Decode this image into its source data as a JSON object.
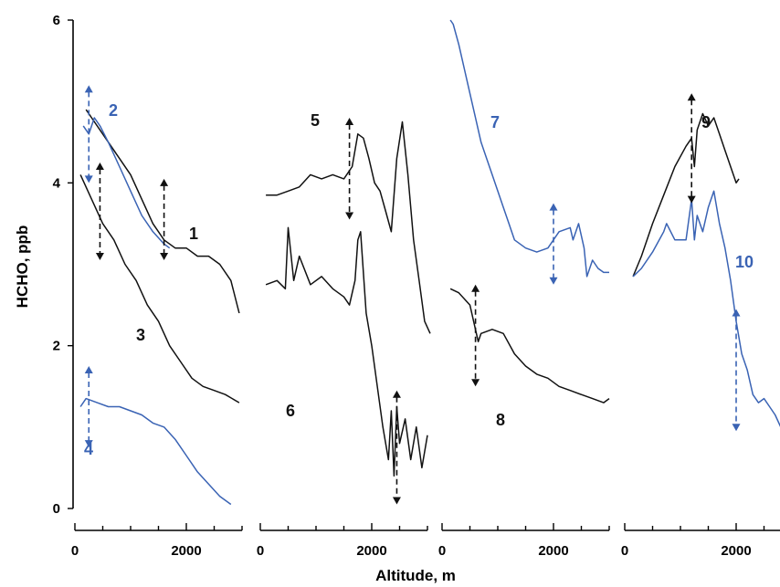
{
  "colors": {
    "black": "#111111",
    "blue": "#3a63b4"
  },
  "chart_data": {
    "type": "line",
    "xlabel": "Altitude, m",
    "ylabel": "HCHO, ppb",
    "ylim": [
      0,
      6
    ],
    "yticks": [
      0,
      2,
      4,
      6
    ],
    "xlim": [
      0,
      3000
    ],
    "xticks": [
      0,
      2000
    ],
    "panels": [
      {
        "series": [
          {
            "label": "1",
            "color": "black",
            "x": [
              200,
              300,
              500,
              800,
              1000,
              1200,
              1400,
              1600,
              1800,
              2000,
              2200,
              2400,
              2600,
              2800,
              2950
            ],
            "y": [
              4.9,
              4.8,
              4.6,
              4.3,
              4.1,
              3.8,
              3.5,
              3.3,
              3.2,
              3.2,
              3.1,
              3.1,
              3.0,
              2.8,
              2.4
            ]
          },
          {
            "label": "2",
            "color": "blue",
            "x": [
              150,
              250,
              350,
              450,
              600,
              800,
              1000,
              1200,
              1400,
              1600,
              1700
            ],
            "y": [
              4.7,
              4.6,
              4.8,
              4.7,
              4.5,
              4.2,
              3.9,
              3.6,
              3.4,
              3.25,
              3.2
            ]
          },
          {
            "label": "3",
            "color": "black",
            "x": [
              100,
              300,
              500,
              700,
              900,
              1100,
              1300,
              1500,
              1700,
              1900,
              2100,
              2300,
              2500,
              2700,
              2950
            ],
            "y": [
              4.1,
              3.8,
              3.5,
              3.3,
              3.0,
              2.8,
              2.5,
              2.3,
              2.0,
              1.8,
              1.6,
              1.5,
              1.45,
              1.4,
              1.3
            ]
          },
          {
            "label": "4",
            "color": "blue",
            "x": [
              100,
              200,
              400,
              600,
              800,
              1000,
              1200,
              1400,
              1600,
              1800,
              2000,
              2200,
              2400,
              2600,
              2800
            ],
            "y": [
              1.25,
              1.35,
              1.3,
              1.25,
              1.25,
              1.2,
              1.15,
              1.05,
              1.0,
              0.85,
              0.65,
              0.45,
              0.3,
              0.15,
              0.05
            ]
          }
        ],
        "arrows": [
          {
            "x": 250,
            "y1": 4.0,
            "y2": 5.2,
            "color": "blue",
            "heads": "both"
          },
          {
            "x": 450,
            "y1": 3.05,
            "y2": 4.25,
            "color": "black",
            "heads": "both"
          },
          {
            "x": 1600,
            "y1": 3.05,
            "y2": 4.05,
            "color": "black",
            "heads": "both"
          },
          {
            "x": 250,
            "y1": 0.75,
            "y2": 1.75,
            "color": "blue",
            "heads": "both"
          }
        ]
      },
      {
        "series": [
          {
            "label": "5",
            "color": "black",
            "x": [
              100,
              300,
              500,
              700,
              900,
              1100,
              1300,
              1500,
              1650,
              1750,
              1850,
              1950,
              2050,
              2150,
              2250,
              2350,
              2450,
              2550,
              2650,
              2750,
              2850,
              2950,
              3050
            ],
            "y": [
              3.85,
              3.85,
              3.9,
              3.95,
              4.1,
              4.05,
              4.1,
              4.05,
              4.2,
              4.6,
              4.55,
              4.3,
              4.0,
              3.9,
              3.65,
              3.4,
              4.3,
              4.75,
              4.1,
              3.3,
              2.8,
              2.3,
              2.15
            ]
          },
          {
            "label": "6",
            "color": "black",
            "x": [
              100,
              300,
              450,
              500,
              600,
              700,
              900,
              1100,
              1300,
              1500,
              1600,
              1700,
              1750,
              1800,
              1900,
              2000,
              2100,
              2200,
              2300,
              2350,
              2400,
              2450,
              2500,
              2600,
              2700,
              2800,
              2900,
              3000
            ],
            "y": [
              2.75,
              2.8,
              2.7,
              3.45,
              2.8,
              3.1,
              2.75,
              2.85,
              2.7,
              2.6,
              2.5,
              2.8,
              3.3,
              3.4,
              2.4,
              2.0,
              1.5,
              1.0,
              0.6,
              1.2,
              0.4,
              1.25,
              0.8,
              1.1,
              0.6,
              1.0,
              0.5,
              0.9
            ]
          }
        ],
        "arrows": [
          {
            "x": 1600,
            "y1": 3.55,
            "y2": 4.8,
            "color": "black",
            "heads": "both"
          },
          {
            "x": 2450,
            "y1": 0.05,
            "y2": 1.45,
            "color": "black",
            "heads": "both"
          }
        ]
      },
      {
        "series": [
          {
            "label": "7",
            "color": "blue",
            "x": [
              150,
              200,
              300,
              400,
              500,
              600,
              700,
              800,
              900,
              1000,
              1100,
              1200,
              1300,
              1500,
              1700,
              1900,
              2100,
              2300,
              2350,
              2450,
              2550,
              2600,
              2700,
              2800,
              2900,
              3000
            ],
            "y": [
              6.0,
              5.95,
              5.7,
              5.4,
              5.1,
              4.8,
              4.5,
              4.3,
              4.1,
              3.9,
              3.7,
              3.5,
              3.3,
              3.2,
              3.15,
              3.2,
              3.4,
              3.45,
              3.3,
              3.5,
              3.2,
              2.85,
              3.05,
              2.95,
              2.9,
              2.9
            ]
          },
          {
            "label": "8",
            "color": "black",
            "x": [
              150,
              300,
              500,
              650,
              700,
              900,
              1100,
              1300,
              1500,
              1700,
              1900,
              2100,
              2300,
              2500,
              2700,
              2900,
              3000
            ],
            "y": [
              2.7,
              2.65,
              2.5,
              2.05,
              2.15,
              2.2,
              2.15,
              1.9,
              1.75,
              1.65,
              1.6,
              1.5,
              1.45,
              1.4,
              1.35,
              1.3,
              1.35
            ]
          }
        ],
        "arrows": [
          {
            "x": 600,
            "y1": 1.5,
            "y2": 2.75,
            "color": "black",
            "heads": "both"
          },
          {
            "x": 2000,
            "y1": 2.75,
            "y2": 3.75,
            "color": "blue",
            "heads": "both"
          }
        ]
      },
      {
        "series": [
          {
            "label": "9",
            "color": "black",
            "x": [
              150,
              300,
              500,
              700,
              900,
              1100,
              1200,
              1250,
              1300,
              1400,
              1500,
              1600,
              1700,
              1800,
              1900,
              2000,
              2050
            ],
            "y": [
              2.85,
              3.1,
              3.5,
              3.85,
              4.2,
              4.45,
              4.55,
              4.2,
              4.65,
              4.85,
              4.7,
              4.8,
              4.6,
              4.4,
              4.2,
              4.0,
              4.05
            ]
          },
          {
            "label": "10",
            "color": "blue",
            "x": [
              150,
              300,
              500,
              700,
              750,
              900,
              1100,
              1200,
              1250,
              1300,
              1400,
              1500,
              1600,
              1700,
              1800,
              1900,
              2000,
              2100,
              2200,
              2300,
              2400,
              2500,
              2600,
              2700,
              2800,
              2900,
              3000
            ],
            "y": [
              2.85,
              2.95,
              3.15,
              3.4,
              3.5,
              3.3,
              3.3,
              3.8,
              3.3,
              3.6,
              3.4,
              3.7,
              3.9,
              3.5,
              3.2,
              2.8,
              2.3,
              1.9,
              1.7,
              1.4,
              1.3,
              1.35,
              1.25,
              1.15,
              1.0,
              0.85,
              0.75
            ]
          }
        ],
        "arrows": [
          {
            "x": 1200,
            "y1": 3.75,
            "y2": 5.1,
            "color": "black",
            "heads": "both"
          },
          {
            "x": 2000,
            "y1": 0.95,
            "y2": 2.45,
            "color": "blue",
            "heads": "both"
          }
        ]
      }
    ]
  }
}
